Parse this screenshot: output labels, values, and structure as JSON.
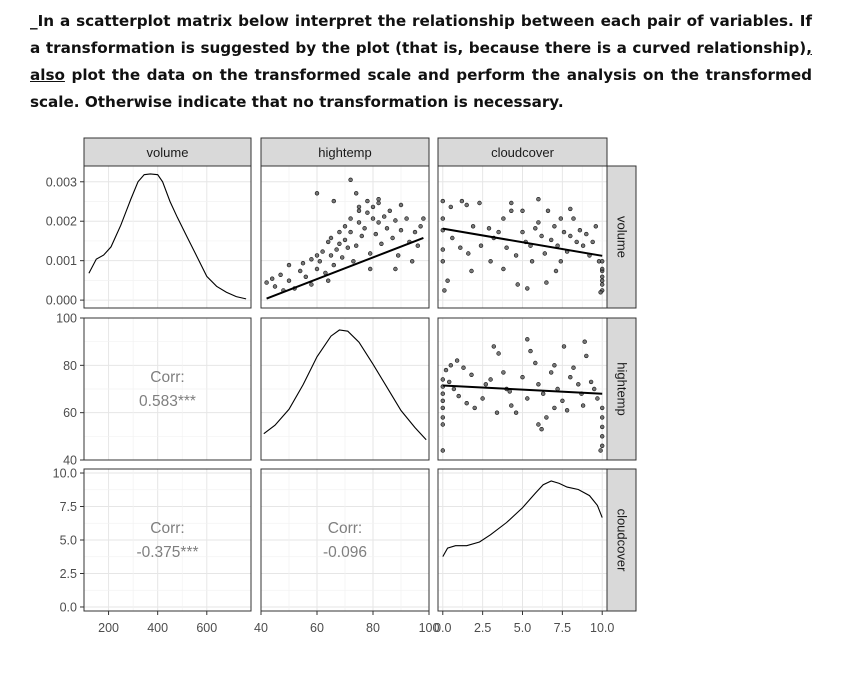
{
  "question": {
    "part1": "_In a scatterplot matrix below interpret the relationship between each pair of variables. If a transformation is suggested by the plot (that is, because there is a curved relationship)",
    "part2": ", also",
    "part3": " plot the data on the transformed scale and perform the analysis on the transformed scale. Otherwise indicate that no transformation is necessary."
  },
  "chart_data": {
    "type": "scatter",
    "variables": [
      "volume",
      "hightemp",
      "cloudcover"
    ],
    "column_strips": [
      "volume",
      "hightemp",
      "cloudcover"
    ],
    "row_strips": [
      "volume",
      "hightemp",
      "cloudcover"
    ],
    "axes": {
      "x": {
        "volume": {
          "range": [
            100,
            780
          ],
          "ticks": [
            "200",
            "400",
            "600"
          ]
        },
        "hightemp": {
          "range": [
            40,
            100
          ],
          "ticks": [
            "40",
            "60",
            "80",
            "100"
          ]
        },
        "cloudcover": {
          "range": [
            -0.3,
            10.3
          ],
          "ticks": [
            "0.0",
            "2.5",
            "5.0",
            "7.5",
            "10.0"
          ]
        }
      },
      "y": {
        "volume_density": {
          "range": [
            -0.0002,
            0.0034
          ],
          "ticks": [
            "0.000",
            "0.001",
            "0.002",
            "0.003"
          ]
        },
        "hightemp": {
          "range": [
            40,
            100
          ],
          "ticks": [
            "40",
            "60",
            "80",
            "100"
          ]
        },
        "cloudcover": {
          "range": [
            -0.3,
            10.3
          ],
          "ticks": [
            "0.0",
            "2.5",
            "5.0",
            "7.5",
            "10.0"
          ]
        }
      }
    },
    "correlations": [
      {
        "row": "hightemp",
        "col": "volume",
        "label": "Corr:",
        "value": "0.583***"
      },
      {
        "row": "cloudcover",
        "col": "volume",
        "label": "Corr:",
        "value": "-0.375***"
      },
      {
        "row": "cloudcover",
        "col": "hightemp",
        "label": "Corr:",
        "value": "-0.096"
      }
    ],
    "densities": {
      "volume": [
        [
          120,
          0.00068
        ],
        [
          150,
          0.00104
        ],
        [
          180,
          0.00114
        ],
        [
          210,
          0.00135
        ],
        [
          250,
          0.0019
        ],
        [
          290,
          0.00255
        ],
        [
          320,
          0.003
        ],
        [
          345,
          0.00318
        ],
        [
          370,
          0.0032
        ],
        [
          400,
          0.00318
        ],
        [
          420,
          0.003
        ],
        [
          450,
          0.0025
        ],
        [
          480,
          0.0021
        ],
        [
          520,
          0.0016
        ],
        [
          560,
          0.0011
        ],
        [
          600,
          0.0006
        ],
        [
          640,
          0.00035
        ],
        [
          680,
          0.0002
        ],
        [
          720,
          9e-05
        ],
        [
          760,
          3e-05
        ]
      ],
      "hightemp": [
        [
          41,
          0.15
        ],
        [
          45,
          0.22
        ],
        [
          50,
          0.35
        ],
        [
          55,
          0.55
        ],
        [
          60,
          0.78
        ],
        [
          65,
          0.95
        ],
        [
          68,
          1.0
        ],
        [
          71,
          0.99
        ],
        [
          75,
          0.9
        ],
        [
          80,
          0.72
        ],
        [
          85,
          0.53
        ],
        [
          90,
          0.34
        ],
        [
          95,
          0.2
        ],
        [
          99,
          0.1
        ]
      ],
      "cloudcover": [
        [
          0,
          0.38
        ],
        [
          0.3,
          0.45
        ],
        [
          0.8,
          0.47
        ],
        [
          1.5,
          0.47
        ],
        [
          2.3,
          0.5
        ],
        [
          3,
          0.56
        ],
        [
          4,
          0.66
        ],
        [
          5,
          0.78
        ],
        [
          5.8,
          0.9
        ],
        [
          6.3,
          0.97
        ],
        [
          6.8,
          1.0
        ],
        [
          7.3,
          0.98
        ],
        [
          7.8,
          0.95
        ],
        [
          8.5,
          0.93
        ],
        [
          9.2,
          0.88
        ],
        [
          9.7,
          0.8
        ],
        [
          10,
          0.7
        ]
      ]
    },
    "fits": {
      "volume~hightemp": {
        "x": [
          42,
          98
        ],
        "y": [
          108,
          420
        ]
      },
      "volume~cloudcover": {
        "x": [
          0,
          10
        ],
        "y": [
          468,
          328
        ]
      },
      "hightemp~cloudcover": {
        "x": [
          0,
          10
        ],
        "y": [
          71.5,
          68
        ]
      }
    },
    "scatter": {
      "volume~hightemp": [
        [
          42,
          190
        ],
        [
          44,
          210
        ],
        [
          45,
          170
        ],
        [
          47,
          230
        ],
        [
          48,
          150
        ],
        [
          50,
          280
        ],
        [
          50,
          200
        ],
        [
          52,
          160
        ],
        [
          54,
          250
        ],
        [
          55,
          290
        ],
        [
          56,
          220
        ],
        [
          58,
          310
        ],
        [
          58,
          180
        ],
        [
          60,
          260
        ],
        [
          60,
          330
        ],
        [
          61,
          300
        ],
        [
          62,
          350
        ],
        [
          63,
          240
        ],
        [
          64,
          200
        ],
        [
          64,
          400
        ],
        [
          65,
          420
        ],
        [
          65,
          330
        ],
        [
          66,
          280
        ],
        [
          67,
          360
        ],
        [
          68,
          450
        ],
        [
          68,
          390
        ],
        [
          69,
          320
        ],
        [
          70,
          480
        ],
        [
          70,
          410
        ],
        [
          71,
          370
        ],
        [
          72,
          520
        ],
        [
          72,
          450
        ],
        [
          73,
          300
        ],
        [
          74,
          380
        ],
        [
          75,
          560
        ],
        [
          75,
          500
        ],
        [
          76,
          430
        ],
        [
          77,
          470
        ],
        [
          78,
          610
        ],
        [
          78,
          550
        ],
        [
          79,
          340
        ],
        [
          80,
          520
        ],
        [
          80,
          580
        ],
        [
          81,
          440
        ],
        [
          82,
          600
        ],
        [
          82,
          500
        ],
        [
          83,
          390
        ],
        [
          84,
          530
        ],
        [
          85,
          470
        ],
        [
          86,
          560
        ],
        [
          87,
          420
        ],
        [
          88,
          510
        ],
        [
          89,
          330
        ],
        [
          90,
          460
        ],
        [
          92,
          520
        ],
        [
          93,
          400
        ],
        [
          94,
          300
        ],
        [
          95,
          450
        ],
        [
          96,
          380
        ],
        [
          97,
          480
        ],
        [
          98,
          520
        ],
        [
          60,
          650
        ],
        [
          66,
          610
        ],
        [
          74,
          650
        ],
        [
          82,
          620
        ],
        [
          90,
          590
        ],
        [
          72,
          720
        ],
        [
          75,
          580
        ],
        [
          79,
          260
        ],
        [
          88,
          260
        ]
      ],
      "volume~cloudcover": [
        [
          0,
          610
        ],
        [
          0.5,
          580
        ],
        [
          1.2,
          610
        ],
        [
          1.5,
          590
        ],
        [
          2.3,
          600
        ],
        [
          0,
          520
        ],
        [
          0,
          460
        ],
        [
          0,
          300
        ],
        [
          0,
          360
        ],
        [
          0.3,
          200
        ],
        [
          0.6,
          420
        ],
        [
          1.1,
          370
        ],
        [
          1.6,
          340
        ],
        [
          1.9,
          480
        ],
        [
          2.4,
          380
        ],
        [
          0.1,
          150
        ],
        [
          1.8,
          250
        ],
        [
          3,
          300
        ],
        [
          3.2,
          420
        ],
        [
          3.5,
          450
        ],
        [
          3.8,
          520
        ],
        [
          4,
          370
        ],
        [
          4.3,
          600
        ],
        [
          4.3,
          560
        ],
        [
          4.6,
          330
        ],
        [
          5,
          450
        ],
        [
          5.2,
          400
        ],
        [
          5.5,
          380
        ],
        [
          5.8,
          470
        ],
        [
          6,
          500
        ],
        [
          6.2,
          430
        ],
        [
          6.4,
          340
        ],
        [
          6.6,
          560
        ],
        [
          6.8,
          410
        ],
        [
          7,
          480
        ],
        [
          7.2,
          380
        ],
        [
          7.4,
          520
        ],
        [
          7.6,
          450
        ],
        [
          7.8,
          350
        ],
        [
          8,
          430
        ],
        [
          8.2,
          520
        ],
        [
          8.4,
          400
        ],
        [
          8.6,
          460
        ],
        [
          8.8,
          380
        ],
        [
          9,
          440
        ],
        [
          9.2,
          330
        ],
        [
          9.4,
          400
        ],
        [
          9.6,
          480
        ],
        [
          9.8,
          300
        ],
        [
          10,
          250
        ],
        [
          10,
          200
        ],
        [
          10,
          150
        ],
        [
          10,
          180
        ],
        [
          10,
          220
        ],
        [
          10,
          260
        ],
        [
          10,
          300
        ],
        [
          9.9,
          140
        ],
        [
          5.3,
          160
        ],
        [
          6.5,
          190
        ],
        [
          7.1,
          250
        ],
        [
          4.7,
          180
        ],
        [
          3.8,
          260
        ],
        [
          6,
          620
        ],
        [
          5,
          560
        ],
        [
          8,
          570
        ],
        [
          2.9,
          470
        ],
        [
          5.6,
          300
        ],
        [
          7.4,
          300
        ]
      ],
      "hightemp~cloudcover": [
        [
          0.2,
          78
        ],
        [
          0.5,
          80
        ],
        [
          0.9,
          82
        ],
        [
          1.3,
          79
        ],
        [
          1.8,
          76
        ],
        [
          0,
          74
        ],
        [
          0,
          71
        ],
        [
          0,
          68
        ],
        [
          0,
          65
        ],
        [
          0,
          62
        ],
        [
          0,
          58
        ],
        [
          0,
          55
        ],
        [
          0,
          44
        ],
        [
          0.4,
          73
        ],
        [
          0.7,
          70
        ],
        [
          1,
          67
        ],
        [
          1.5,
          64
        ],
        [
          2,
          62
        ],
        [
          2.5,
          66
        ],
        [
          3,
          74
        ],
        [
          3.2,
          88
        ],
        [
          3.5,
          85
        ],
        [
          3.8,
          77
        ],
        [
          4,
          70
        ],
        [
          4.3,
          63
        ],
        [
          4.6,
          60
        ],
        [
          5,
          75
        ],
        [
          5.3,
          91
        ],
        [
          5.5,
          86
        ],
        [
          5.8,
          81
        ],
        [
          6,
          72
        ],
        [
          6.3,
          68
        ],
        [
          6.5,
          58
        ],
        [
          6.8,
          77
        ],
        [
          7,
          80
        ],
        [
          7.2,
          70
        ],
        [
          7.5,
          65
        ],
        [
          7.8,
          61
        ],
        [
          8,
          75
        ],
        [
          8.2,
          79
        ],
        [
          8.5,
          72
        ],
        [
          8.7,
          68
        ],
        [
          9,
          84
        ],
        [
          9.3,
          73
        ],
        [
          9.5,
          70
        ],
        [
          9.7,
          66
        ],
        [
          10,
          62
        ],
        [
          10,
          58
        ],
        [
          10,
          54
        ],
        [
          10,
          50
        ],
        [
          10,
          46
        ],
        [
          9.9,
          44
        ],
        [
          6,
          55
        ],
        [
          6.2,
          53
        ],
        [
          7,
          62
        ],
        [
          8.8,
          63
        ],
        [
          5.3,
          66
        ],
        [
          2.7,
          72
        ],
        [
          4.2,
          69
        ],
        [
          3.4,
          60
        ],
        [
          7.6,
          88
        ],
        [
          8.9,
          90
        ]
      ]
    }
  }
}
